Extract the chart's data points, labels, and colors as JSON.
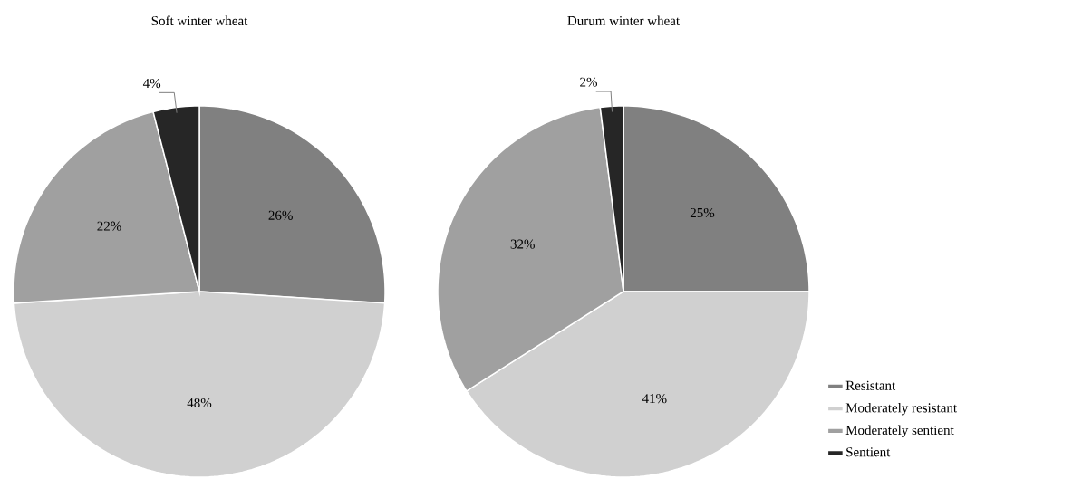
{
  "chart_data": [
    {
      "type": "pie",
      "title": "Soft winter wheat",
      "categories": [
        null,
        null,
        null,
        null
      ],
      "values": [
        26,
        48,
        22,
        4
      ],
      "colors": [
        "#808080",
        "#d0d0d0",
        "#a0a0a0",
        "#262626"
      ],
      "value_labels": [
        "26%",
        "48%",
        "22%",
        "4%"
      ]
    },
    {
      "type": "pie",
      "title": "Durum winter wheat",
      "categories": [
        "Resistant",
        "Moderately resistant",
        "Moderately sentient",
        "Sentient"
      ],
      "values": [
        25,
        41,
        32,
        2
      ],
      "colors": [
        "#808080",
        "#d0d0d0",
        "#a0a0a0",
        "#262626"
      ],
      "value_labels": [
        "25%",
        "41%",
        "32%",
        "2%"
      ],
      "legend": "right"
    }
  ]
}
